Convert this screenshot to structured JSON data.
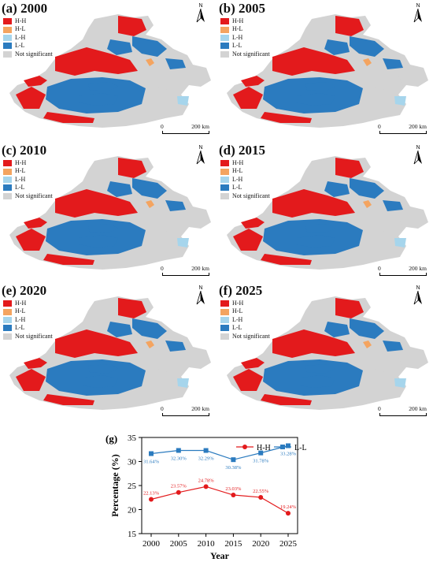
{
  "panels": [
    {
      "title": "(a) 2000",
      "color_order": [
        "hh",
        "ll",
        "hh",
        "ll",
        "ns",
        "ll",
        "hh",
        "ll",
        "hh",
        "hl",
        "ll",
        "lh",
        "hh",
        "ll"
      ]
    },
    {
      "title": "(b) 2005",
      "color_order": [
        "hh",
        "ll",
        "hh",
        "ll",
        "ns",
        "ll",
        "hh",
        "ll",
        "hh",
        "hl",
        "ll",
        "lh",
        "hh",
        "ll"
      ]
    },
    {
      "title": "(c) 2010",
      "color_order": [
        "hh",
        "ll",
        "hh",
        "ll",
        "ns",
        "ll",
        "hh",
        "ll",
        "hh",
        "hl",
        "ll",
        "lh",
        "hh",
        "ll"
      ]
    },
    {
      "title": "(d) 2015",
      "color_order": [
        "hh",
        "ll",
        "hh",
        "ll",
        "ns",
        "ll",
        "hh",
        "ll",
        "hh",
        "hl",
        "ll",
        "lh",
        "hh",
        "ll"
      ]
    },
    {
      "title": "(e) 2020",
      "color_order": [
        "hh",
        "ll",
        "hh",
        "ll",
        "ns",
        "ll",
        "hh",
        "ll",
        "hh",
        "hl",
        "ll",
        "lh",
        "hh",
        "ll"
      ]
    },
    {
      "title": "(f) 2025",
      "color_order": [
        "hh",
        "ll",
        "hh",
        "ll",
        "ns",
        "ll",
        "hh",
        "ll",
        "hh",
        "hl",
        "ll",
        "lh",
        "hh",
        "ll"
      ]
    }
  ],
  "legend": [
    {
      "key": "hh",
      "label": "H-H",
      "color": "#e31a1c"
    },
    {
      "key": "hl",
      "label": "H-L",
      "color": "#f4a460"
    },
    {
      "key": "lh",
      "label": "L-H",
      "color": "#a6d5ec"
    },
    {
      "key": "ll",
      "label": "L-L",
      "color": "#2b7bbf"
    },
    {
      "key": "ns",
      "label": "Not significant",
      "color": "#d3d3d3"
    }
  ],
  "north_label": "N",
  "scale": {
    "zero": "0",
    "dist": "200 km"
  },
  "chart_data": {
    "type": "line",
    "panel_label": "(g)",
    "x": [
      2000,
      2005,
      2010,
      2015,
      2020,
      2025
    ],
    "xlabel": "Year",
    "ylabel": "Percentage (%)",
    "ylim": [
      15,
      35
    ],
    "yticks": [
      15,
      20,
      25,
      30,
      35
    ],
    "legend_position": "top-right",
    "series": [
      {
        "name": "H-H",
        "color": "#e31a1c",
        "marker": "circle",
        "values": [
          22.13,
          23.57,
          24.78,
          23.03,
          22.55,
          19.24
        ],
        "labels": [
          "22.13%",
          "23.57%",
          "24.78%",
          "23.03%",
          "22.55%",
          "19.24%"
        ]
      },
      {
        "name": "L-L",
        "color": "#2b7bbf",
        "marker": "square",
        "values": [
          31.64,
          32.3,
          32.29,
          30.38,
          31.78,
          33.28
        ],
        "labels": [
          "31.64%",
          "32.30%",
          "32.29%",
          "30.38%",
          "31.78%",
          "33.28%"
        ]
      }
    ]
  }
}
